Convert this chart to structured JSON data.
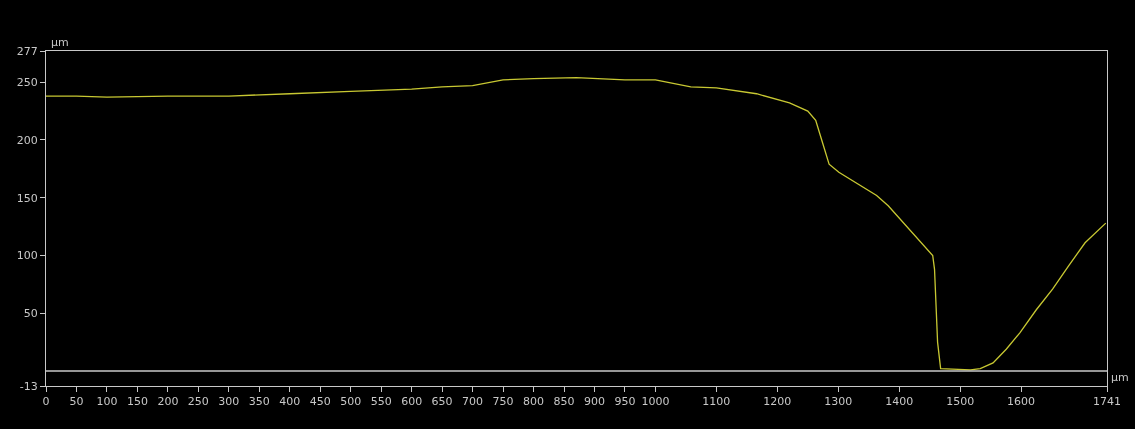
{
  "chart_data": {
    "type": "line",
    "xlabel": "µm",
    "ylabel": "µm",
    "x": [
      0,
      50,
      100,
      200,
      300,
      400,
      500,
      600,
      650,
      700,
      750,
      800,
      870,
      950,
      1000,
      1058,
      1100,
      1166,
      1220,
      1250,
      1263,
      1274,
      1285,
      1301,
      1363,
      1382,
      1455,
      1458,
      1463,
      1468,
      1517,
      1533,
      1554,
      1576,
      1598,
      1625,
      1652,
      1678,
      1705,
      1739
    ],
    "series": [
      {
        "color": "#c8c832",
        "values": [
          238,
          238,
          237,
          238,
          238,
          240,
          242,
          244,
          246,
          247,
          252,
          253,
          254,
          252,
          252,
          246,
          245,
          240,
          232,
          225,
          217,
          198,
          179,
          172,
          152,
          143,
          100,
          88,
          25,
          2,
          1,
          2,
          7,
          19,
          33,
          53,
          71,
          91,
          111,
          128
        ]
      }
    ],
    "xlim": [
      0,
      1741
    ],
    "ylim": [
      -13,
      277
    ],
    "xticks": [
      0,
      50,
      100,
      150,
      200,
      250,
      300,
      350,
      400,
      450,
      500,
      550,
      600,
      650,
      700,
      750,
      800,
      850,
      900,
      950,
      1000,
      1100,
      1200,
      1300,
      1400,
      1500,
      1600,
      1741
    ],
    "yticks": [
      -13,
      50,
      100,
      150,
      200,
      250,
      277
    ],
    "ref_lines": [
      {
        "axis": "y",
        "value": 0,
        "color": "#c8c8c8"
      }
    ],
    "grid": false,
    "marker": "none",
    "line_style": "solid"
  }
}
